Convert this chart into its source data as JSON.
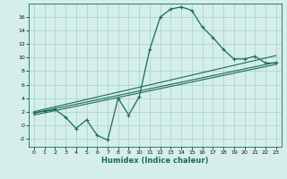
{
  "xlabel": "Humidex (Indice chaleur)",
  "bg_color": "#d4eeea",
  "grid_color": "#aed4cc",
  "line_color": "#1a6b5a",
  "xlim": [
    -0.5,
    23.5
  ],
  "ylim": [
    -3.2,
    18.0
  ],
  "xticks": [
    0,
    1,
    2,
    3,
    4,
    5,
    6,
    7,
    8,
    9,
    10,
    11,
    12,
    13,
    14,
    15,
    16,
    17,
    18,
    19,
    20,
    21,
    22,
    23
  ],
  "yticks": [
    -2,
    0,
    2,
    4,
    6,
    8,
    10,
    12,
    14,
    16
  ],
  "curve_x": [
    0,
    1,
    2,
    3,
    4,
    5,
    6,
    7,
    8,
    9,
    10,
    11,
    12,
    13,
    14,
    15,
    16,
    17,
    18,
    19,
    20,
    21,
    22,
    23
  ],
  "curve_y": [
    1.8,
    2.1,
    2.3,
    1.2,
    -0.5,
    0.8,
    -1.5,
    -2.2,
    4.0,
    1.5,
    4.2,
    11.2,
    16.0,
    17.2,
    17.5,
    17.0,
    14.5,
    13.0,
    11.2,
    9.8,
    9.8,
    10.2,
    9.2,
    9.2
  ],
  "line1_x": [
    0,
    23
  ],
  "line1_y": [
    2.0,
    10.3
  ],
  "line2_x": [
    0,
    23
  ],
  "line2_y": [
    1.8,
    9.3
  ],
  "line3_x": [
    0,
    23
  ],
  "line3_y": [
    1.5,
    9.0
  ]
}
